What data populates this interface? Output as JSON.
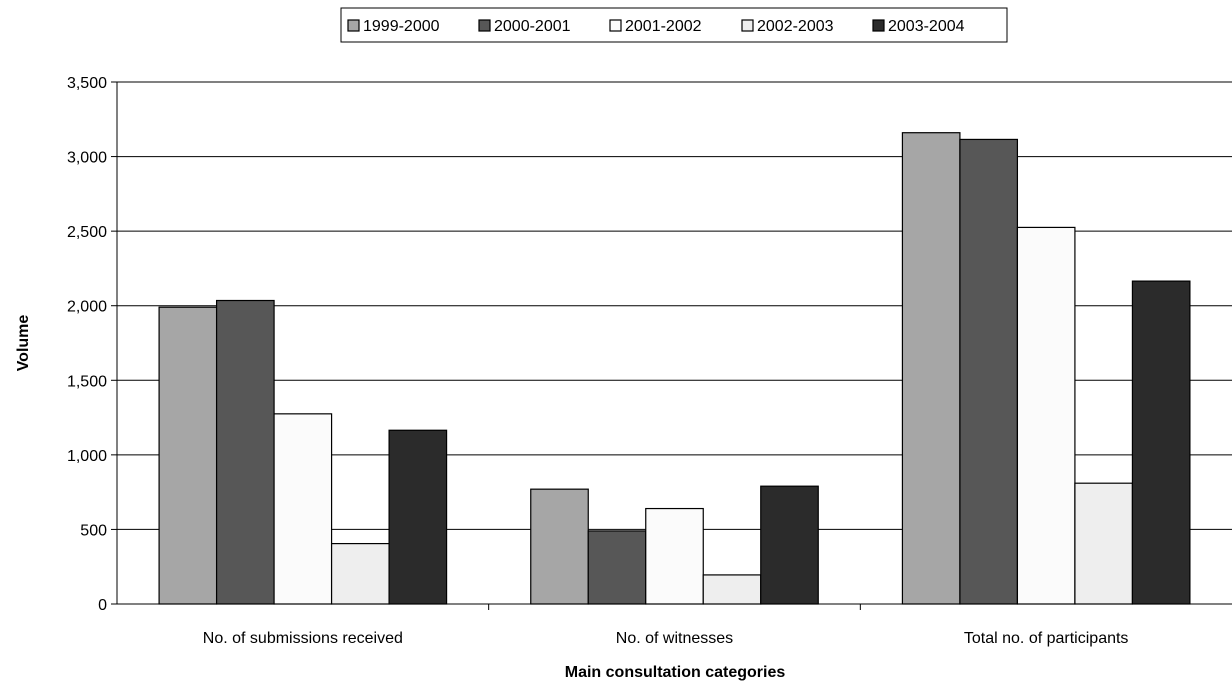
{
  "chart_data": {
    "type": "bar",
    "title": "",
    "xlabel": "Main consultation categories",
    "ylabel": "Volume",
    "ylim": [
      0,
      3500
    ],
    "yticks": [
      0,
      500,
      1000,
      1500,
      2000,
      2500,
      3000,
      3500
    ],
    "ytick_labels": [
      "0",
      "500",
      "1,000",
      "1,500",
      "2,000",
      "2,500",
      "3,000",
      "3,500"
    ],
    "grid": true,
    "legend_position": "top",
    "categories": [
      "No. of submissions received",
      "No. of witnesses",
      "Total no. of participants"
    ],
    "series": [
      {
        "name": "1999-2000",
        "color": "#a6a6a6",
        "values": [
          1990,
          770,
          3160
        ]
      },
      {
        "name": "2000-2001",
        "color": "#575757",
        "values": [
          2035,
          490,
          3115
        ]
      },
      {
        "name": "2001-2002",
        "color": "#fbfbfb",
        "values": [
          1275,
          640,
          2525
        ]
      },
      {
        "name": "2002-2003",
        "color": "#eeeeee",
        "values": [
          405,
          195,
          810
        ]
      },
      {
        "name": "2003-2004",
        "color": "#2b2b2b",
        "values": [
          1165,
          790,
          2165
        ]
      }
    ]
  }
}
